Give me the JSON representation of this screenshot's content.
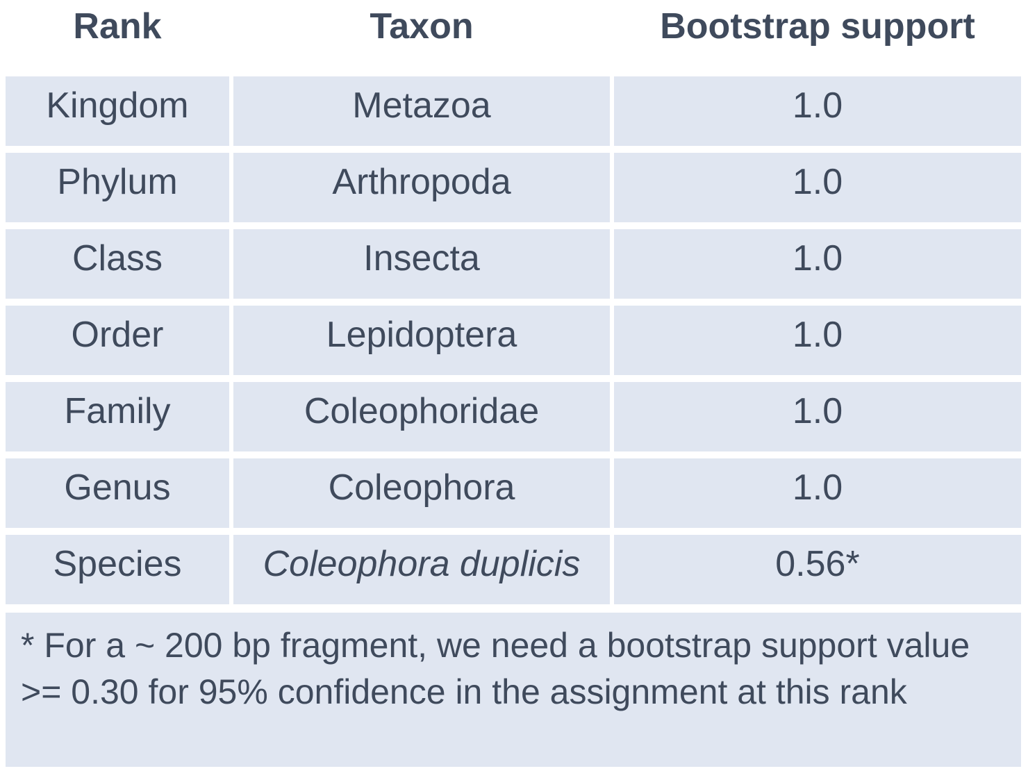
{
  "header": {
    "rank": "Rank",
    "taxon": "Taxon",
    "bootstrap": "Bootstrap support"
  },
  "rows": [
    {
      "rank": "Kingdom",
      "taxon": "Metazoa",
      "bootstrap": "1.0",
      "italic": false
    },
    {
      "rank": "Phylum",
      "taxon": "Arthropoda",
      "bootstrap": "1.0",
      "italic": false
    },
    {
      "rank": "Class",
      "taxon": "Insecta",
      "bootstrap": "1.0",
      "italic": false
    },
    {
      "rank": "Order",
      "taxon": "Lepidoptera",
      "bootstrap": "1.0",
      "italic": false
    },
    {
      "rank": "Family",
      "taxon": "Coleophoridae",
      "bootstrap": "1.0",
      "italic": false
    },
    {
      "rank": "Genus",
      "taxon": "Coleophora",
      "bootstrap": "1.0",
      "italic": false
    },
    {
      "rank": "Species",
      "taxon": "Coleophora duplicis",
      "bootstrap": "0.56*",
      "italic": true
    }
  ],
  "footnote": "* For a ~ 200 bp fragment, we need a bootstrap support value >= 0.30 for 95% confidence in the assignment at this rank",
  "colors": {
    "text": "#3f4a5c",
    "cell_background": "#e0e6f1",
    "page_background": "#ffffff"
  }
}
